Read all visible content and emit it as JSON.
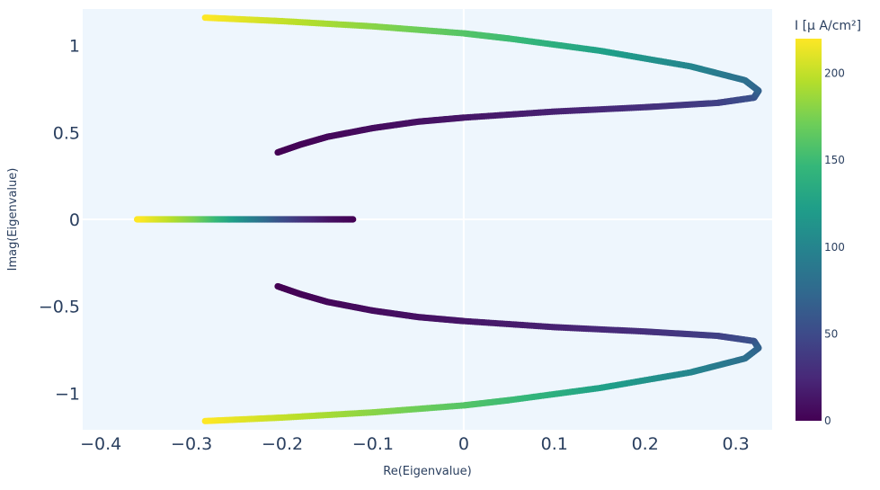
{
  "chart_data": {
    "type": "scatter",
    "xlabel": "Re(Eigenvalue)",
    "ylabel": "Imag(Eigenvalue)",
    "xlim": [
      -0.42,
      0.34
    ],
    "ylim": [
      -1.21,
      1.21
    ],
    "x_ticks": [
      -0.4,
      -0.3,
      -0.2,
      -0.1,
      0,
      0.1,
      0.2,
      0.3
    ],
    "x_tick_labels": [
      "−0.4",
      "−0.3",
      "−0.2",
      "−0.1",
      "0",
      "0.1",
      "0.2",
      "0.3"
    ],
    "y_ticks": [
      1,
      0.5,
      0,
      -0.5,
      -1
    ],
    "y_tick_labels": [
      "1",
      "0.5",
      "0",
      "−0.5",
      "−1"
    ],
    "grid": true,
    "colorbar": {
      "title": "I [μ A/cm²]",
      "range": [
        0,
        220
      ],
      "ticks": [
        0,
        50,
        100,
        150,
        200
      ],
      "tick_labels": [
        "0",
        "50",
        "100",
        "150",
        "200"
      ],
      "colorscale": "Viridis"
    },
    "series": [
      {
        "branch": "upper",
        "x": [
          -0.205,
          -0.18,
          -0.15,
          -0.1,
          -0.05,
          0.0,
          0.1,
          0.2,
          0.28,
          0.32,
          0.325,
          0.31,
          0.25,
          0.15,
          0.05,
          0.0,
          -0.1,
          -0.2,
          -0.285
        ],
        "y": [
          0.385,
          0.43,
          0.475,
          0.525,
          0.562,
          0.585,
          0.62,
          0.645,
          0.67,
          0.7,
          0.74,
          0.8,
          0.88,
          0.97,
          1.04,
          1.07,
          1.11,
          1.14,
          1.16
        ],
        "I": [
          0,
          2,
          4,
          7,
          10,
          13,
          20,
          30,
          42,
          55,
          68,
          80,
          100,
          125,
          150,
          160,
          180,
          200,
          220
        ]
      },
      {
        "branch": "lower",
        "x": [
          -0.205,
          -0.18,
          -0.15,
          -0.1,
          -0.05,
          0.0,
          0.1,
          0.2,
          0.28,
          0.32,
          0.325,
          0.31,
          0.25,
          0.15,
          0.05,
          0.0,
          -0.1,
          -0.2,
          -0.285
        ],
        "y": [
          -0.385,
          -0.43,
          -0.475,
          -0.525,
          -0.562,
          -0.585,
          -0.62,
          -0.645,
          -0.67,
          -0.7,
          -0.74,
          -0.8,
          -0.88,
          -0.97,
          -1.04,
          -1.07,
          -1.11,
          -1.14,
          -1.16
        ],
        "I": [
          0,
          2,
          4,
          7,
          10,
          13,
          20,
          30,
          42,
          55,
          68,
          80,
          100,
          125,
          150,
          160,
          180,
          200,
          220
        ]
      },
      {
        "branch": "real",
        "x": [
          -0.122,
          -0.15,
          -0.18,
          -0.21,
          -0.24,
          -0.27,
          -0.3,
          -0.33,
          -0.36
        ],
        "y": [
          0,
          0,
          0,
          0,
          0,
          0,
          0,
          0,
          0
        ],
        "I": [
          0,
          10,
          30,
          60,
          100,
          140,
          175,
          200,
          220
        ]
      }
    ]
  }
}
